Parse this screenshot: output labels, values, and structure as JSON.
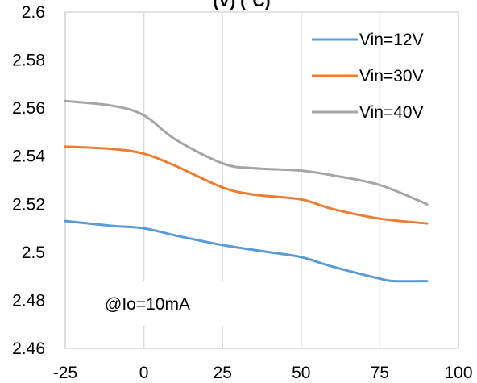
{
  "chart_data": {
    "type": "line",
    "title": "(V) (°C)",
    "x": [
      -25,
      0,
      25,
      50,
      75,
      90
    ],
    "x_ticks": [
      "-25",
      "0",
      "25",
      "50",
      "75",
      "100"
    ],
    "y_ticks": [
      "2.46",
      "2.48",
      "2.5",
      "2.52",
      "2.54",
      "2.56",
      "2.58",
      "2.6"
    ],
    "xlim": [
      -25,
      100
    ],
    "ylim": [
      2.46,
      2.6
    ],
    "grid": "vertical",
    "legend": "top-right",
    "annotation": "@Io=10mA",
    "series": [
      {
        "name": "Vin=12V",
        "color": "#5b9bd5",
        "points": [
          [
            -25,
            2.513
          ],
          [
            -10,
            2.511
          ],
          [
            0,
            2.51
          ],
          [
            10,
            2.507
          ],
          [
            25,
            2.503
          ],
          [
            40,
            2.5
          ],
          [
            50,
            2.498
          ],
          [
            60,
            2.494
          ],
          [
            75,
            2.489
          ],
          [
            80,
            2.488
          ],
          [
            90,
            2.488
          ]
        ]
      },
      {
        "name": "Vin=30V",
        "color": "#ed7d31",
        "points": [
          [
            -25,
            2.544
          ],
          [
            -10,
            2.543
          ],
          [
            0,
            2.541
          ],
          [
            10,
            2.536
          ],
          [
            25,
            2.527
          ],
          [
            35,
            2.524
          ],
          [
            50,
            2.522
          ],
          [
            60,
            2.518
          ],
          [
            75,
            2.514
          ],
          [
            90,
            2.512
          ]
        ]
      },
      {
        "name": "Vin=40V",
        "color": "#a5a5a5",
        "points": [
          [
            -25,
            2.563
          ],
          [
            -10,
            2.561
          ],
          [
            0,
            2.557
          ],
          [
            10,
            2.547
          ],
          [
            25,
            2.537
          ],
          [
            35,
            2.535
          ],
          [
            50,
            2.534
          ],
          [
            60,
            2.532
          ],
          [
            75,
            2.528
          ],
          [
            90,
            2.52
          ]
        ]
      }
    ]
  }
}
